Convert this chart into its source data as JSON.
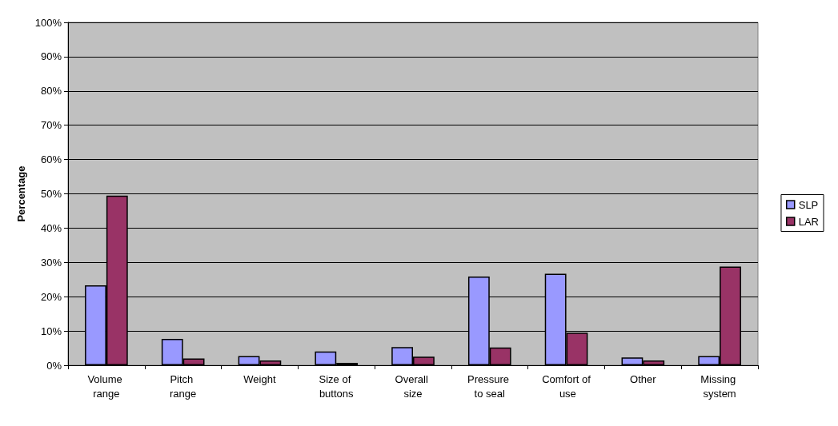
{
  "chart_data": {
    "type": "bar",
    "ylabel": "Percentage",
    "categories": [
      "Volume range",
      "Pitch range",
      "Weight",
      "Size of buttons",
      "Overall size",
      "Pressure to seal",
      "Comfort of use",
      "Other",
      "Missing system"
    ],
    "series": [
      {
        "name": "SLP",
        "color": "#9999ff",
        "values": [
          23.3,
          7.7,
          2.7,
          4.0,
          5.3,
          25.9,
          26.7,
          2.3,
          2.7
        ]
      },
      {
        "name": "LAR",
        "color": "#993366",
        "values": [
          49.5,
          2.0,
          1.4,
          0.7,
          2.5,
          5.2,
          9.5,
          1.4,
          28.8
        ]
      }
    ],
    "ylim": [
      0,
      100
    ],
    "yticks": [
      {
        "value": 0,
        "label": "0%"
      },
      {
        "value": 10,
        "label": "10%"
      },
      {
        "value": 20,
        "label": "20%"
      },
      {
        "value": 30,
        "label": "30%"
      },
      {
        "value": 40,
        "label": "40%"
      },
      {
        "value": 50,
        "label": "50%"
      },
      {
        "value": 60,
        "label": "60%"
      },
      {
        "value": 70,
        "label": "70%"
      },
      {
        "value": 80,
        "label": "80%"
      },
      {
        "value": 90,
        "label": "90%"
      },
      {
        "value": 100,
        "label": "100%"
      }
    ],
    "grid": "y",
    "legend": "right"
  }
}
